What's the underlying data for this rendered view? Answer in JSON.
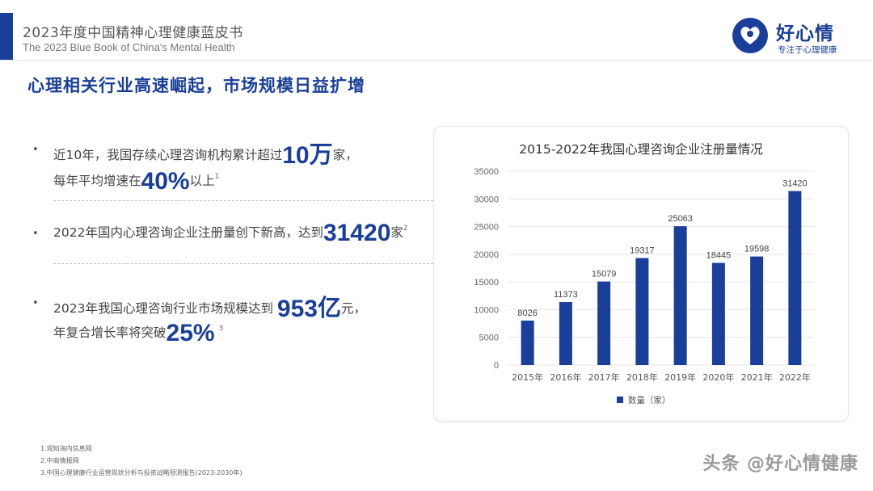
{
  "header": {
    "title_cn": "2023年度中国精神心理健康蓝皮书",
    "title_en": "The 2023 Blue Book of China's Mental Health"
  },
  "logo": {
    "name": "好心情",
    "tagline": "专注于心理健康"
  },
  "slide_title": "心理相关行业高速崛起，市场规模日益扩增",
  "bullets": [
    {
      "line1_pre": "近10年，我国存续心理咨询机构累计超过",
      "line1_big": "10",
      "line1_big_cn": "万",
      "line1_post": "家，",
      "line2_pre": "每年平均增速在",
      "line2_big": "40%",
      "line2_post": "以上",
      "ref": "1"
    },
    {
      "line1_pre": "2022年国内心理咨询企业注册量创下新高，达到",
      "line1_big": "31420",
      "line1_post": "家",
      "ref": "2"
    },
    {
      "line1_pre": "2023年我国心理咨询行业市场规模达到",
      "line1_big": "953",
      "line1_big_cn": "亿",
      "line1_post": "元，",
      "line2_pre": "年复合增长率将突破",
      "line2_big": "25%",
      "ref": "3"
    }
  ],
  "chart_data": {
    "type": "bar",
    "title": "2015-2022年我国心理咨询企业注册量情况",
    "categories": [
      "2015年",
      "2016年",
      "2017年",
      "2018年",
      "2019年",
      "2020年",
      "2021年",
      "2022年"
    ],
    "series": [
      {
        "name": "数量（家）",
        "values": [
          8026,
          11373,
          15079,
          19317,
          25063,
          18445,
          19598,
          31420
        ]
      }
    ],
    "yticks": [
      "0",
      "5000",
      "10000",
      "15000",
      "20000",
      "25000",
      "30000",
      "35000"
    ],
    "ylim": [
      0,
      35000
    ],
    "grid": true,
    "legend": "bottom",
    "bar_color": "#1a3f9a"
  },
  "footnotes": [
    "1.观知海内信息网",
    "2.中商情报网",
    "3.中国心理健康行业运营现状分析与投资战略预测报告(2023-2030年)"
  ],
  "watermark": "头条 @好心情健康"
}
